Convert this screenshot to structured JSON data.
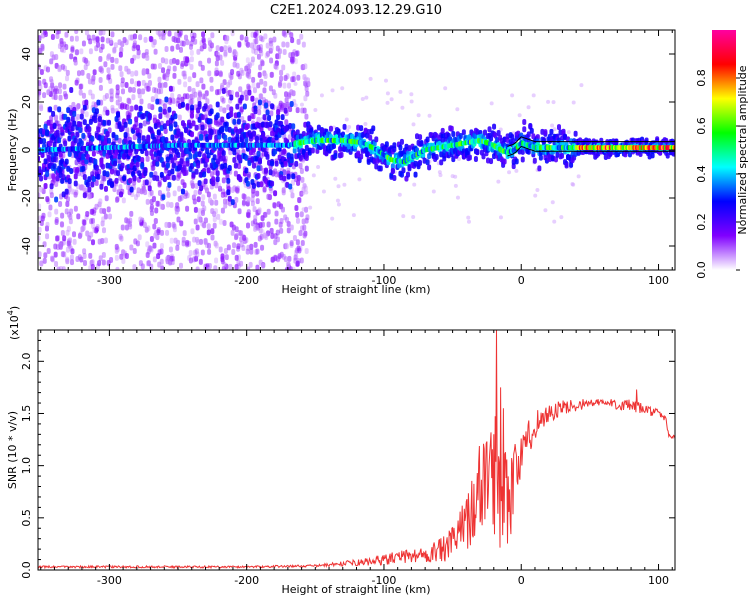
{
  "figure_title": "C2E1.2024.093.12.29.G10",
  "chart_data": [
    {
      "type": "heatmap",
      "title": "C2E1.2024.093.12.29.G10",
      "xlabel": "Height of straight line (km)",
      "ylabel": "Frequency (Hz)",
      "xlim": [
        -352,
        112
      ],
      "ylim": [
        -50,
        50
      ],
      "x_ticks": [
        -300,
        -200,
        -100,
        0,
        100
      ],
      "x_tick_labels": [
        "-300",
        "-200",
        "-100",
        "0",
        "100"
      ],
      "y_ticks": [
        -40,
        -20,
        0,
        20,
        40
      ],
      "y_tick_labels": [
        "-40",
        "-20",
        "0",
        "20",
        "40"
      ],
      "colorbar": {
        "label": "Normalized spectral amplitude",
        "range": [
          0,
          1
        ],
        "ticks": [
          0,
          0.2,
          0.4,
          0.6,
          0.8
        ],
        "tick_labels": [
          "0.0",
          "0.2",
          "0.4",
          "0.6",
          "0.8"
        ],
        "colormap": [
          "#ffffff",
          "#8000ff",
          "#0000ff",
          "#00ffff",
          "#00ff00",
          "#ffff00",
          "#ff0000",
          "#ff00a0"
        ]
      },
      "ridge": {
        "x": [
          -352,
          -300,
          -250,
          -200,
          -170,
          -160,
          -150,
          -130,
          -115,
          -105,
          -95,
          -85,
          -80,
          -70,
          -60,
          -50,
          -40,
          -30,
          -20,
          -15,
          -10,
          -5,
          0,
          5,
          10,
          20,
          40,
          60,
          80,
          100,
          112
        ],
        "y": [
          0,
          1,
          2,
          2,
          2,
          3,
          4,
          4,
          3,
          0,
          -4,
          -5,
          -3,
          0,
          1,
          2,
          3,
          4,
          2,
          0,
          -1,
          0,
          3,
          2,
          1,
          1,
          1,
          1,
          1,
          1,
          1
        ]
      },
      "noise_region_x": [
        -352,
        -165
      ],
      "grid": false
    },
    {
      "type": "line",
      "title": "",
      "xlabel": "Height of straight line (km)",
      "ylabel": "SNR (10 * v/v)",
      "y_scale_label": "(x10",
      "y_scale_exponent": "4",
      "y_scale_suffix": ")",
      "xlim": [
        -352,
        112
      ],
      "ylim": [
        0,
        2.3
      ],
      "x_ticks": [
        -300,
        -200,
        -100,
        0,
        100
      ],
      "x_tick_labels": [
        "-300",
        "-200",
        "-100",
        "0",
        "100"
      ],
      "y_ticks": [
        0,
        0.5,
        1.0,
        1.5,
        2.0
      ],
      "y_tick_labels": [
        "0.0",
        "0.5",
        "1.0",
        "1.5",
        "2.0"
      ],
      "line_color": "#ee3333",
      "envelope": {
        "x": [
          -352,
          -300,
          -250,
          -200,
          -150,
          -130,
          -110,
          -90,
          -70,
          -55,
          -45,
          -35,
          -28,
          -22,
          -18,
          -15,
          -12,
          -8,
          -5,
          0,
          5,
          10,
          20,
          30,
          40,
          50,
          60,
          70,
          80,
          90,
          100,
          105,
          108,
          112
        ],
        "y": [
          0.03,
          0.03,
          0.03,
          0.03,
          0.04,
          0.06,
          0.08,
          0.12,
          0.15,
          0.2,
          0.35,
          0.6,
          0.85,
          1.0,
          0.9,
          0.85,
          0.8,
          0.7,
          0.9,
          1.1,
          1.25,
          1.4,
          1.5,
          1.55,
          1.58,
          1.6,
          1.6,
          1.59,
          1.57,
          1.54,
          1.5,
          1.45,
          1.28,
          1.27
        ]
      },
      "noise_amplitude": {
        "x": [
          -352,
          -150,
          -120,
          -100,
          -70,
          -50,
          -35,
          -25,
          -15,
          -10,
          -5,
          0,
          20,
          50,
          80,
          100,
          112
        ],
        "y": [
          0.01,
          0.01,
          0.03,
          0.05,
          0.08,
          0.15,
          0.35,
          0.55,
          0.65,
          0.5,
          0.35,
          0.2,
          0.1,
          0.04,
          0.06,
          0.04,
          0.02
        ]
      },
      "peaks": [
        {
          "x": -18,
          "y": 2.3
        },
        {
          "x": -15,
          "y": 1.75
        },
        {
          "x": -13,
          "y": 1.55
        },
        {
          "x": -20,
          "y": 1.3
        },
        {
          "x": 84,
          "y": 1.73
        }
      ],
      "grid": false
    }
  ]
}
